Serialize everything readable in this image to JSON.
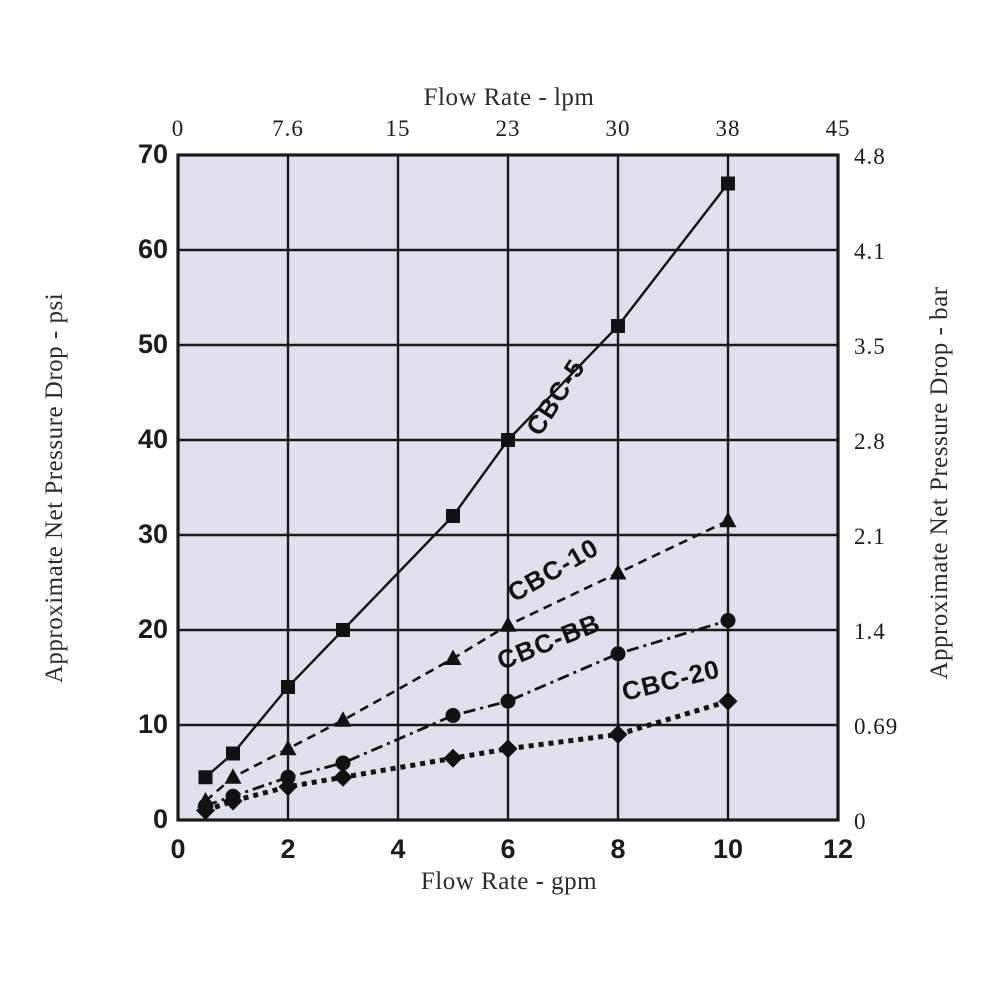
{
  "chart_data": {
    "type": "line",
    "description": "Approximate net pressure drop versus flow rate for CBC series filter cartridges",
    "colors": {
      "plot_background": "#dfe2ec",
      "grid_line": "#1a1a1a",
      "series_color": "#111111",
      "page_background": "#ffffff"
    },
    "x_axis_bottom": {
      "label": "Flow Rate - gpm",
      "ticks": [
        0,
        2,
        4,
        6,
        8,
        10,
        12
      ],
      "tick_labels": [
        "0",
        "2",
        "4",
        "6",
        "8",
        "10",
        "12"
      ],
      "range": [
        0,
        12
      ],
      "grid": true
    },
    "x_axis_top": {
      "label": "Flow Rate - lpm",
      "tick_labels": [
        "0",
        "7.6",
        "15",
        "23",
        "30",
        "38",
        "45"
      ],
      "aligned_to_bottom_ticks": true
    },
    "y_axis_left": {
      "label": "Approximate Net Pressure Drop - psi",
      "ticks": [
        0,
        10,
        20,
        30,
        40,
        50,
        60,
        70
      ],
      "tick_labels": [
        "0",
        "10",
        "20",
        "30",
        "40",
        "50",
        "60",
        "70"
      ],
      "range": [
        0,
        70
      ],
      "grid": true
    },
    "y_axis_right": {
      "label": "Approximate Net Pressure Drop - bar",
      "tick_labels": [
        "0",
        "0.69",
        "1.4",
        "2.1",
        "2.8",
        "3.5",
        "4.1",
        "4.8"
      ],
      "aligned_to_left_ticks": true
    },
    "series": [
      {
        "name": "CBC-5",
        "marker": "square",
        "line_style": "solid",
        "points": [
          [
            0.5,
            4.5
          ],
          [
            1,
            7
          ],
          [
            2,
            14
          ],
          [
            3,
            20
          ],
          [
            5,
            32
          ],
          [
            6,
            40
          ],
          [
            8,
            52
          ],
          [
            10,
            67
          ]
        ],
        "label": {
          "text": "CBC-5",
          "x": 7.0,
          "y": 44.0,
          "angle": -57
        }
      },
      {
        "name": "CBC-10",
        "marker": "triangle",
        "line_style": "dashed",
        "points": [
          [
            0.5,
            2
          ],
          [
            1,
            4.5
          ],
          [
            2,
            7.5
          ],
          [
            3,
            10.5
          ],
          [
            5,
            17
          ],
          [
            6,
            20.5
          ],
          [
            8,
            26
          ],
          [
            10,
            31.5
          ]
        ],
        "label": {
          "text": "CBC-10",
          "x": 6.9,
          "y": 25.5,
          "angle": -30
        }
      },
      {
        "name": "CBC-BB",
        "marker": "circle",
        "line_style": "dashdot",
        "points": [
          [
            0.5,
            1.5
          ],
          [
            1,
            2.5
          ],
          [
            2,
            4.5
          ],
          [
            3,
            6
          ],
          [
            5,
            11
          ],
          [
            6,
            12.5
          ],
          [
            8,
            17.5
          ],
          [
            10,
            21
          ]
        ],
        "label": {
          "text": "CBC-BB",
          "x": 6.8,
          "y": 17.9,
          "angle": -22
        }
      },
      {
        "name": "CBC-20",
        "marker": "diamond",
        "line_style": "dotted",
        "points": [
          [
            0.5,
            1
          ],
          [
            1,
            2
          ],
          [
            2,
            3.5
          ],
          [
            3,
            4.5
          ],
          [
            5,
            6.5
          ],
          [
            6,
            7.5
          ],
          [
            8,
            9
          ],
          [
            10,
            12.5
          ]
        ],
        "label": {
          "text": "CBC-20",
          "x": 9.0,
          "y": 13.8,
          "angle": -14
        }
      }
    ]
  }
}
